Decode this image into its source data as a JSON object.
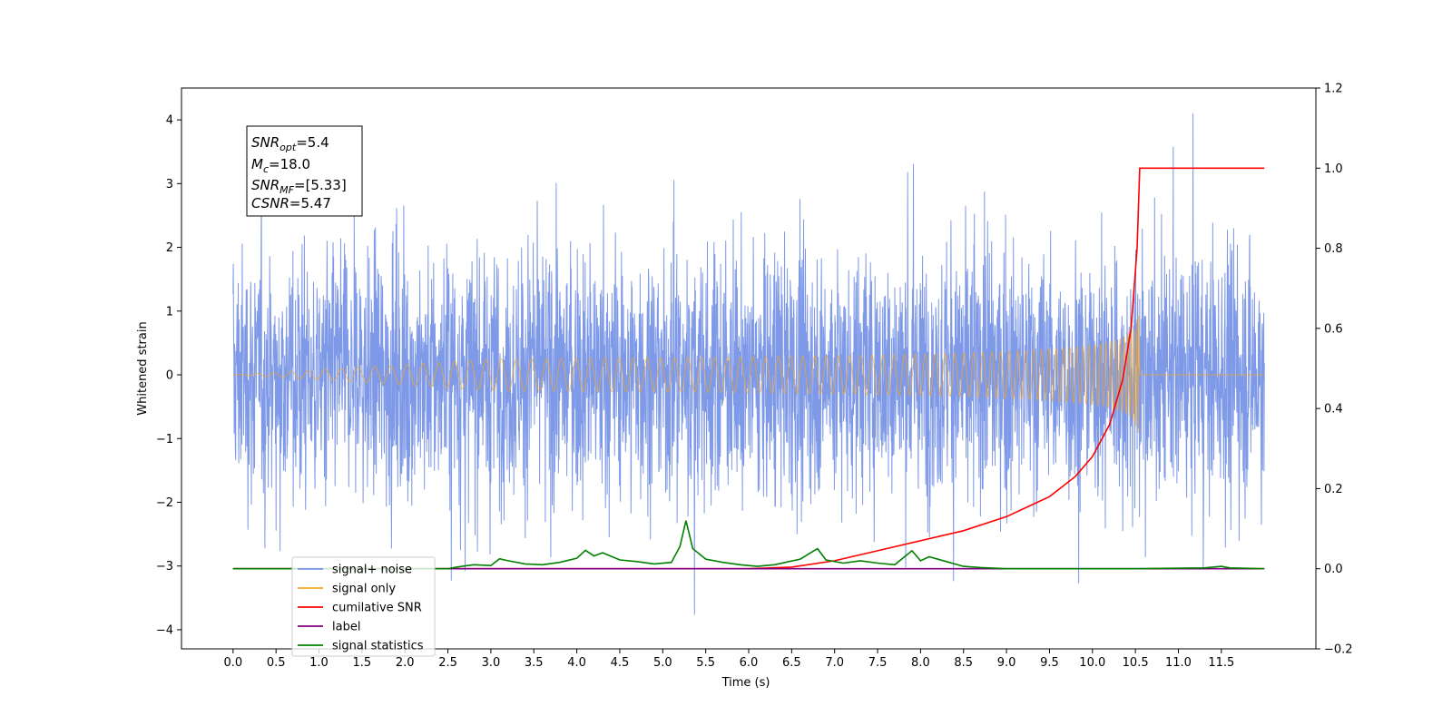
{
  "chart_data": {
    "type": "line",
    "xlabel": "Time (s)",
    "ylabel_left": "Whitened strain",
    "ylim_left": [
      -4.3,
      4.5
    ],
    "ylim_right": [
      -0.2,
      1.2
    ],
    "xlim": [
      -0.6,
      12.6
    ],
    "x_ticks": [
      "0.0",
      "0.5",
      "1.0",
      "1.5",
      "2.0",
      "2.5",
      "3.0",
      "3.5",
      "4.0",
      "4.5",
      "5.0",
      "5.5",
      "6.0",
      "6.5",
      "7.0",
      "7.5",
      "8.0",
      "8.5",
      "9.0",
      "9.5",
      "10.0",
      "10.5",
      "11.0",
      "11.5"
    ],
    "y_ticks_left": [
      "−4",
      "−3",
      "−2",
      "−1",
      "0",
      "1",
      "2",
      "3",
      "4"
    ],
    "y_ticks_right": [
      "−0.2",
      "0.0",
      "0.2",
      "0.4",
      "0.6",
      "0.8",
      "1.0",
      "1.2"
    ],
    "y_tick_values_left": [
      -4,
      -3,
      -2,
      -1,
      0,
      1,
      2,
      3,
      4
    ],
    "y_tick_values_right": [
      -0.2,
      0.0,
      0.2,
      0.4,
      0.6,
      0.8,
      1.0,
      1.2
    ],
    "annotation": {
      "snr_opt": {
        "name": "SNR",
        "sub": "opt",
        "value": "=5.4"
      },
      "mc": {
        "name": "M",
        "sub": "c",
        "value": "=18.0"
      },
      "snr_mf": {
        "name": "SNR",
        "sub": "MF",
        "value": "=[5.33]"
      },
      "csnr": {
        "name": "CSNR",
        "sub": "",
        "value": "=5.47"
      }
    },
    "series": [
      {
        "name": "signal+ noise",
        "color": "#7793e6",
        "axis": "left",
        "amplitude_range": [
          -3.8,
          4.1
        ],
        "x_range": [
          0.0,
          12.0
        ]
      },
      {
        "name": "signal only",
        "color": "#f5a623",
        "axis": "left",
        "merger_time": 10.55,
        "peak": 1.1
      },
      {
        "name": "cumilative SNR",
        "color": "#ff0000",
        "axis": "right",
        "x": [
          0.0,
          6.0,
          6.5,
          7.0,
          7.5,
          8.0,
          8.5,
          9.0,
          9.5,
          9.8,
          10.0,
          10.2,
          10.35,
          10.45,
          10.52,
          10.55,
          12.0
        ],
        "y": [
          0.0,
          0.0,
          0.004,
          0.02,
          0.045,
          0.07,
          0.095,
          0.13,
          0.18,
          0.23,
          0.28,
          0.36,
          0.47,
          0.6,
          0.8,
          1.0,
          1.0
        ]
      },
      {
        "name": "label",
        "color": "#800080",
        "axis": "right",
        "x": [
          0.0,
          12.0
        ],
        "y": [
          0.0,
          0.0
        ]
      },
      {
        "name": "signal statistics",
        "color": "#008000",
        "axis": "right",
        "x": [
          0.0,
          2.5,
          2.6,
          2.8,
          3.0,
          3.1,
          3.2,
          3.4,
          3.6,
          3.8,
          4.0,
          4.1,
          4.2,
          4.3,
          4.5,
          4.7,
          4.9,
          5.1,
          5.2,
          5.27,
          5.35,
          5.5,
          5.7,
          5.9,
          6.1,
          6.3,
          6.6,
          6.8,
          6.9,
          7.1,
          7.3,
          7.5,
          7.7,
          7.9,
          8.0,
          8.1,
          8.3,
          8.5,
          8.7,
          9.0,
          10.5,
          11.3,
          11.5,
          11.6,
          12.0
        ],
        "y": [
          0.0,
          0.0,
          0.004,
          0.01,
          0.008,
          0.025,
          0.02,
          0.012,
          0.01,
          0.016,
          0.026,
          0.046,
          0.032,
          0.04,
          0.022,
          0.018,
          0.012,
          0.016,
          0.055,
          0.12,
          0.05,
          0.024,
          0.016,
          0.01,
          0.006,
          0.01,
          0.024,
          0.05,
          0.022,
          0.014,
          0.02,
          0.014,
          0.01,
          0.045,
          0.02,
          0.03,
          0.018,
          0.006,
          0.003,
          0.0,
          0.0,
          0.002,
          0.006,
          0.002,
          0.0
        ]
      }
    ],
    "legend": {
      "placement": "lower-left",
      "entries": [
        {
          "label": "signal+ noise",
          "color": "#7793e6"
        },
        {
          "label": "signal only",
          "color": "#f5a623"
        },
        {
          "label": "cumilative SNR",
          "color": "#ff0000"
        },
        {
          "label": "label",
          "color": "#800080"
        },
        {
          "label": "signal statistics",
          "color": "#008000"
        }
      ]
    }
  }
}
